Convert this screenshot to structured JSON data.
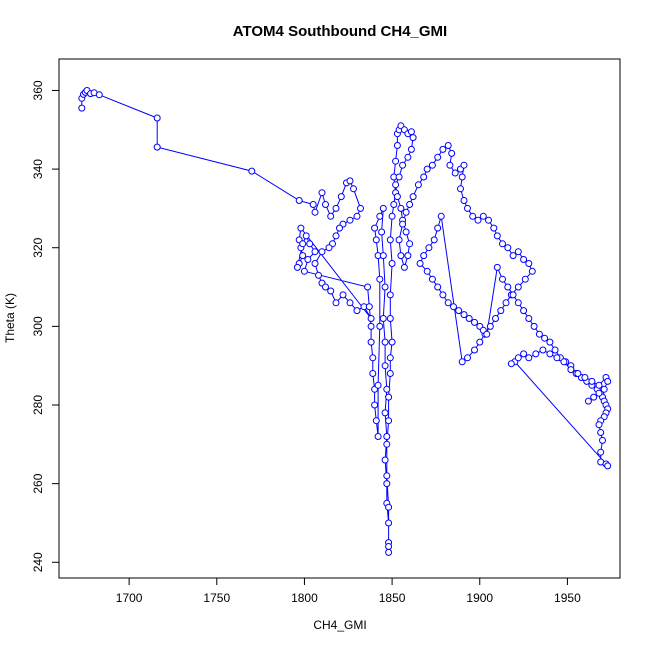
{
  "chart_data": {
    "type": "scatter",
    "title": "ATOM4 Southbound CH4_GMI",
    "xlabel": "CH4_GMI",
    "ylabel": "Theta (K)",
    "xlim": [
      1660,
      1980
    ],
    "ylim": [
      236,
      368
    ],
    "xticks": [
      1700,
      1750,
      1800,
      1850,
      1900,
      1950
    ],
    "yticks": [
      240,
      260,
      280,
      300,
      320,
      340,
      360
    ],
    "grid": false,
    "legend": "none",
    "series_color": "#0000ff",
    "marker": "open-circle",
    "line": true,
    "series": [
      {
        "points": [
          [
            1673,
            355.5
          ],
          [
            1673,
            358
          ],
          [
            1674,
            359
          ],
          [
            1675,
            359.5
          ],
          [
            1676,
            360
          ],
          [
            1678,
            359.2
          ],
          [
            1680,
            359.4
          ],
          [
            1683,
            358.9
          ],
          [
            1716,
            353
          ],
          [
            1716,
            345.6
          ],
          [
            1770,
            339.5
          ],
          [
            1797,
            332
          ],
          [
            1805,
            331
          ],
          [
            1806,
            329
          ],
          [
            1810,
            334
          ],
          [
            1812,
            331
          ],
          [
            1815,
            328
          ],
          [
            1818,
            330
          ],
          [
            1821,
            333
          ],
          [
            1824,
            336.5
          ],
          [
            1826,
            337
          ],
          [
            1828,
            335
          ],
          [
            1832,
            330
          ],
          [
            1830,
            328
          ],
          [
            1826,
            327
          ],
          [
            1822,
            326
          ],
          [
            1820,
            325
          ],
          [
            1818,
            323
          ],
          [
            1816,
            321
          ],
          [
            1814,
            320
          ],
          [
            1810,
            319
          ],
          [
            1806,
            316
          ],
          [
            1808,
            313
          ],
          [
            1810,
            311
          ],
          [
            1812,
            310
          ],
          [
            1815,
            309
          ],
          [
            1818,
            306
          ],
          [
            1822,
            308
          ],
          [
            1826,
            306
          ],
          [
            1830,
            304
          ],
          [
            1834,
            305
          ],
          [
            1838,
            302
          ],
          [
            1798,
            325
          ],
          [
            1797,
            322
          ],
          [
            1798,
            320
          ],
          [
            1799,
            318
          ],
          [
            1797,
            316
          ],
          [
            1796,
            315
          ],
          [
            1799,
            321
          ],
          [
            1801,
            323
          ],
          [
            1803,
            321
          ],
          [
            1806,
            319
          ],
          [
            1802,
            317
          ],
          [
            1800,
            314
          ],
          [
            1836,
            310
          ],
          [
            1837,
            305
          ],
          [
            1838,
            300
          ],
          [
            1838,
            296
          ],
          [
            1839,
            292
          ],
          [
            1839,
            288
          ],
          [
            1840,
            284
          ],
          [
            1840,
            280
          ],
          [
            1841,
            276
          ],
          [
            1842,
            272
          ],
          [
            1842,
            285
          ],
          [
            1843,
            300
          ],
          [
            1843,
            312
          ],
          [
            1842,
            318
          ],
          [
            1841,
            322
          ],
          [
            1840,
            325
          ],
          [
            1843,
            328
          ],
          [
            1845,
            330
          ],
          [
            1844,
            324
          ],
          [
            1845,
            318
          ],
          [
            1846,
            310
          ],
          [
            1845,
            302
          ],
          [
            1846,
            296
          ],
          [
            1846,
            290
          ],
          [
            1847,
            284
          ],
          [
            1846,
            278
          ],
          [
            1847,
            272
          ],
          [
            1846,
            266
          ],
          [
            1847,
            260
          ],
          [
            1847,
            255
          ],
          [
            1848,
            250
          ],
          [
            1848,
            245
          ],
          [
            1848,
            242.5
          ],
          [
            1848,
            244
          ],
          [
            1848,
            254
          ],
          [
            1847,
            262
          ],
          [
            1847,
            270
          ],
          [
            1848,
            276
          ],
          [
            1848,
            282
          ],
          [
            1849,
            288
          ],
          [
            1849,
            292
          ],
          [
            1850,
            296
          ],
          [
            1849,
            302
          ],
          [
            1849,
            308
          ],
          [
            1850,
            316
          ],
          [
            1849,
            322
          ],
          [
            1850,
            328
          ],
          [
            1851,
            331
          ],
          [
            1852,
            334
          ],
          [
            1851,
            338
          ],
          [
            1852,
            342
          ],
          [
            1853,
            346
          ],
          [
            1853,
            349
          ],
          [
            1854,
            350
          ],
          [
            1855,
            351
          ],
          [
            1857,
            350
          ],
          [
            1859,
            349
          ],
          [
            1861,
            349.5
          ],
          [
            1862,
            348
          ],
          [
            1861,
            345
          ],
          [
            1859,
            343
          ],
          [
            1856,
            341
          ],
          [
            1854,
            338
          ],
          [
            1852,
            336
          ],
          [
            1853,
            333
          ],
          [
            1855,
            330
          ],
          [
            1856,
            327
          ],
          [
            1858,
            324
          ],
          [
            1860,
            321
          ],
          [
            1859,
            318
          ],
          [
            1857,
            315
          ],
          [
            1855,
            318
          ],
          [
            1854,
            322
          ],
          [
            1856,
            326
          ],
          [
            1858,
            329
          ],
          [
            1860,
            331
          ],
          [
            1862,
            333
          ],
          [
            1865,
            336
          ],
          [
            1868,
            338
          ],
          [
            1870,
            340
          ],
          [
            1873,
            341
          ],
          [
            1876,
            343
          ],
          [
            1879,
            345
          ],
          [
            1882,
            346
          ],
          [
            1884,
            344
          ],
          [
            1883,
            341
          ],
          [
            1886,
            339
          ],
          [
            1889,
            340
          ],
          [
            1891,
            341
          ],
          [
            1890,
            338
          ],
          [
            1889,
            335
          ],
          [
            1891,
            332
          ],
          [
            1893,
            330
          ],
          [
            1896,
            328
          ],
          [
            1899,
            327
          ],
          [
            1902,
            328
          ],
          [
            1905,
            327
          ],
          [
            1908,
            325
          ],
          [
            1910,
            323
          ],
          [
            1913,
            321
          ],
          [
            1916,
            320
          ],
          [
            1919,
            318
          ],
          [
            1922,
            319
          ],
          [
            1925,
            317
          ],
          [
            1928,
            316
          ],
          [
            1930,
            314
          ],
          [
            1926,
            312
          ],
          [
            1922,
            310
          ],
          [
            1918,
            308
          ],
          [
            1915,
            306
          ],
          [
            1912,
            304
          ],
          [
            1909,
            302
          ],
          [
            1906,
            300
          ],
          [
            1903,
            298
          ],
          [
            1900,
            296
          ],
          [
            1897,
            294
          ],
          [
            1893,
            292
          ],
          [
            1890,
            291
          ],
          [
            1878,
            328
          ],
          [
            1876,
            325
          ],
          [
            1874,
            322
          ],
          [
            1871,
            320
          ],
          [
            1868,
            318
          ],
          [
            1866,
            316
          ],
          [
            1870,
            314
          ],
          [
            1873,
            312
          ],
          [
            1876,
            310
          ],
          [
            1879,
            308
          ],
          [
            1882,
            306
          ],
          [
            1885,
            305
          ],
          [
            1888,
            304
          ],
          [
            1891,
            303
          ],
          [
            1894,
            302
          ],
          [
            1897,
            301
          ],
          [
            1900,
            300
          ],
          [
            1902,
            299
          ],
          [
            1904,
            298
          ],
          [
            1910,
            315
          ],
          [
            1913,
            312
          ],
          [
            1916,
            310
          ],
          [
            1919,
            308
          ],
          [
            1922,
            306
          ],
          [
            1925,
            304
          ],
          [
            1928,
            302
          ],
          [
            1931,
            300
          ],
          [
            1934,
            298
          ],
          [
            1937,
            297
          ],
          [
            1940,
            296
          ],
          [
            1943,
            294
          ],
          [
            1946,
            292
          ],
          [
            1949,
            291
          ],
          [
            1952,
            290
          ],
          [
            1955,
            288
          ],
          [
            1958,
            287
          ],
          [
            1961,
            286
          ],
          [
            1964,
            285
          ],
          [
            1967,
            284
          ],
          [
            1969,
            283
          ],
          [
            1970,
            282
          ],
          [
            1971,
            281
          ],
          [
            1972,
            280
          ],
          [
            1973,
            279
          ],
          [
            1972,
            278
          ],
          [
            1971,
            277
          ],
          [
            1969,
            276
          ],
          [
            1968,
            275
          ],
          [
            1969,
            273
          ],
          [
            1970,
            271
          ],
          [
            1969,
            268
          ],
          [
            1969,
            265.5
          ],
          [
            1972,
            265
          ],
          [
            1973,
            264.5
          ],
          [
            1920,
            291
          ],
          [
            1918,
            290.5
          ],
          [
            1922,
            292
          ],
          [
            1925,
            293
          ],
          [
            1928,
            292
          ],
          [
            1932,
            293
          ],
          [
            1936,
            294
          ],
          [
            1940,
            293
          ],
          [
            1944,
            292
          ],
          [
            1948,
            291
          ],
          [
            1952,
            289
          ],
          [
            1956,
            288
          ],
          [
            1960,
            287
          ],
          [
            1964,
            286
          ],
          [
            1968,
            285
          ],
          [
            1972,
            287
          ],
          [
            1973,
            286
          ],
          [
            1971,
            284
          ],
          [
            1968,
            283
          ],
          [
            1965,
            282
          ],
          [
            1962,
            281
          ]
        ]
      }
    ]
  }
}
